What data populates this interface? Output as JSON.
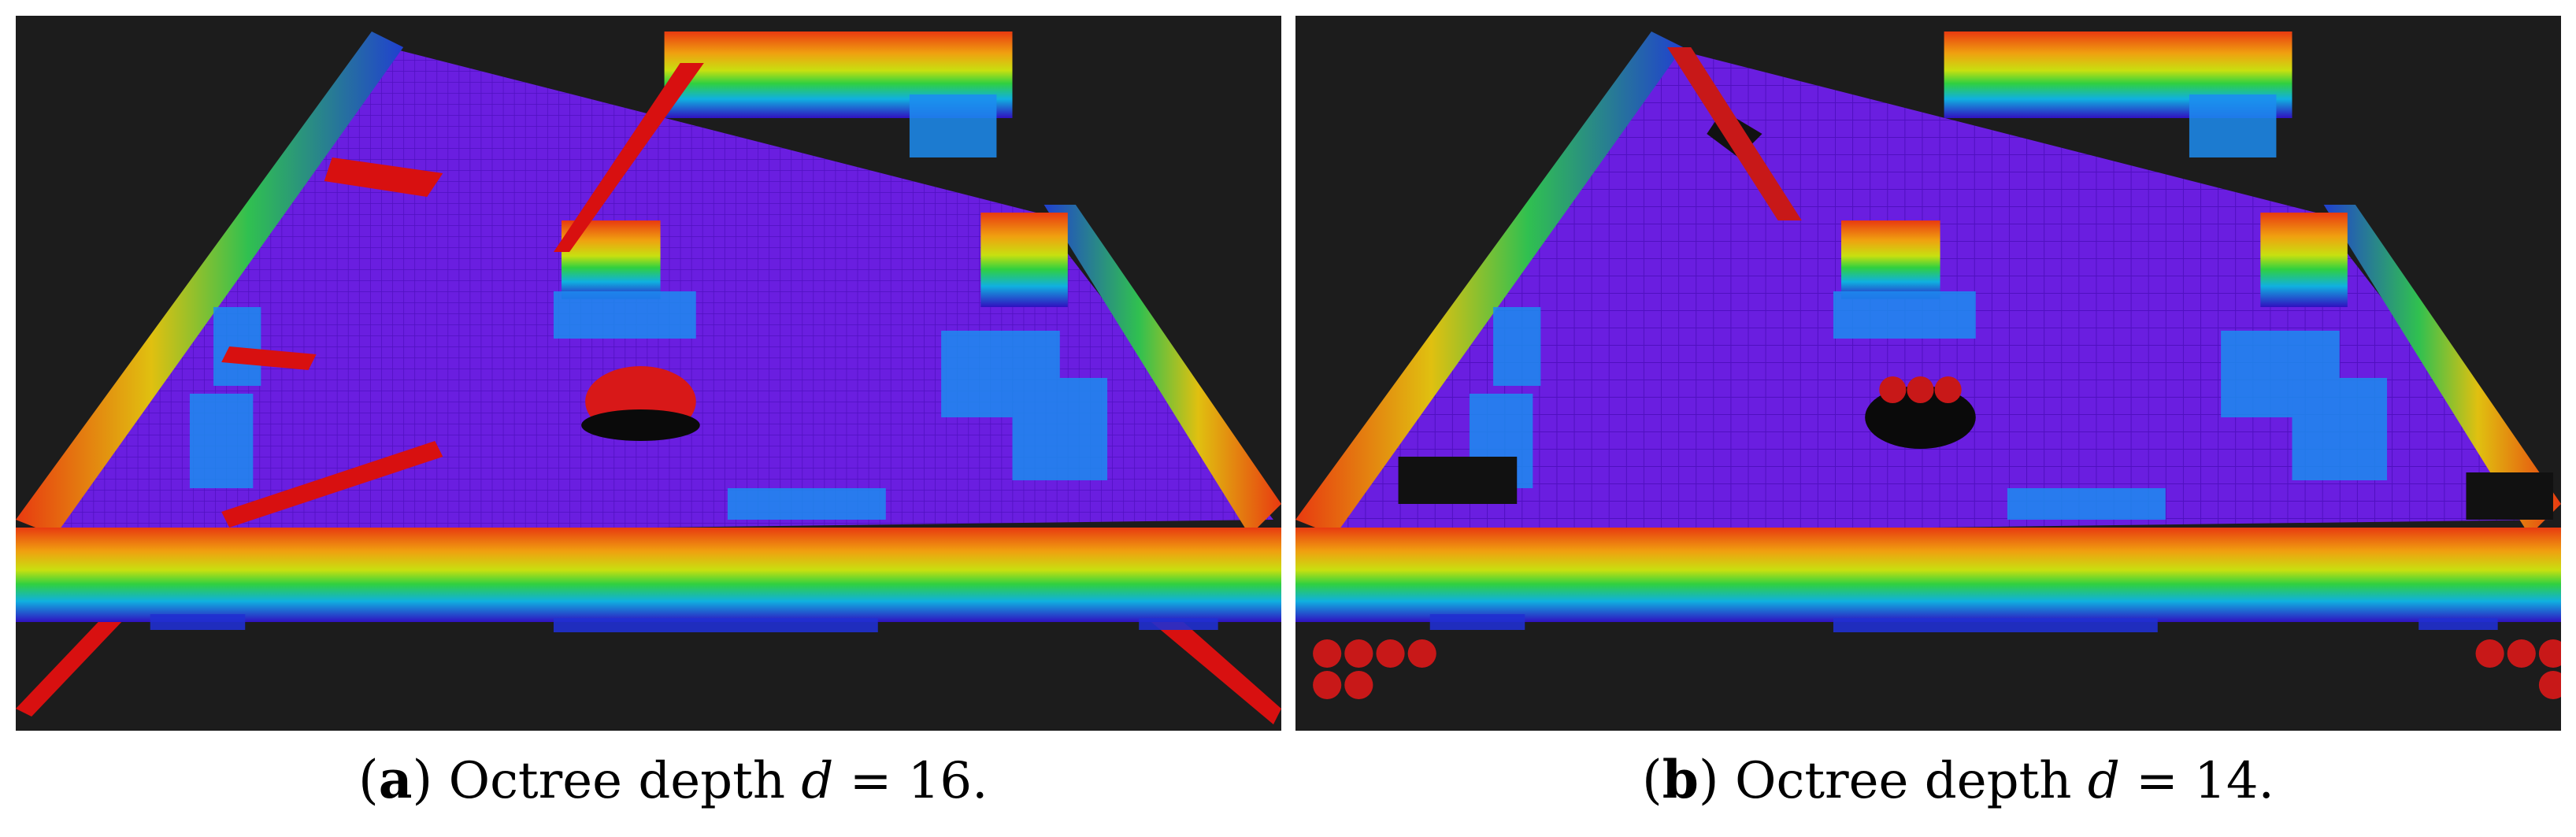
{
  "figure": {
    "panels": [
      {
        "label": "a",
        "caption_text": "Octree depth",
        "variable": "d",
        "equals": "=",
        "value": "16."
      },
      {
        "label": "b",
        "caption_text": "Octree depth",
        "variable": "d",
        "equals": "=",
        "value": "14."
      }
    ],
    "colors": {
      "background": "#1c1c1c",
      "floor": "#6a1ee0",
      "wall_top": "#e83a10",
      "wall_bottom": "#3010c0",
      "clutter": "#1c8cf0",
      "ray_red": "#e01010"
    }
  }
}
